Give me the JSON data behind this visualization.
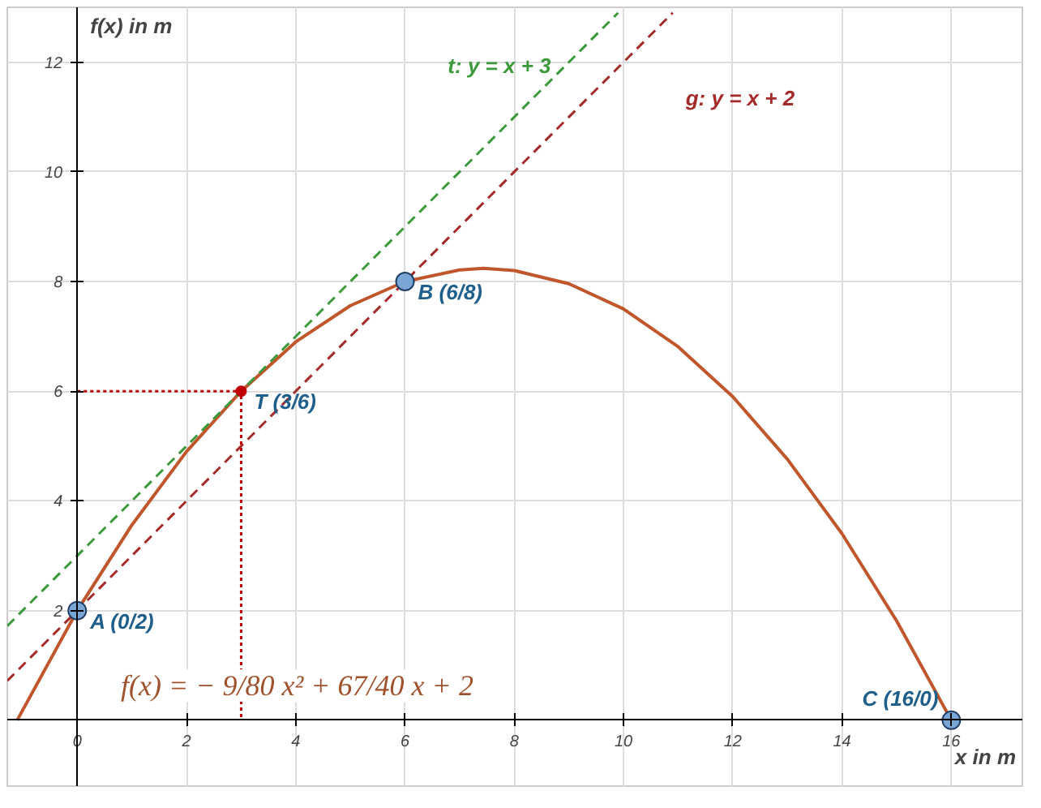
{
  "chart_data": {
    "type": "line",
    "xlabel": "x in m",
    "ylabel": "f(x) in m",
    "xlim": [
      -1.28,
      17.3
    ],
    "ylim": [
      -1.2,
      13.0
    ],
    "xticks": [
      0,
      2,
      4,
      6,
      8,
      10,
      12,
      14,
      16
    ],
    "yticks": [
      2,
      4,
      6,
      8,
      10,
      12
    ],
    "grid": true,
    "series": [
      {
        "color": "#c0562b",
        "line_style": "solid",
        "x": [
          -1.1,
          0,
          1,
          2,
          3,
          4,
          5,
          6,
          7,
          7.44,
          8,
          9,
          10,
          11,
          12,
          13,
          14,
          15,
          16
        ],
        "values": [
          0,
          2,
          3.56,
          4.9,
          6,
          6.9,
          7.56,
          8,
          8.21,
          8.24,
          8.2,
          7.96,
          7.5,
          6.81,
          5.9,
          4.76,
          3.4,
          1.81,
          0
        ]
      },
      {
        "color": "#3c9a3c",
        "line_style": "dashed",
        "x": [
          -1.28,
          9.9
        ],
        "values": [
          1.72,
          12.9
        ]
      },
      {
        "color": "#a52a2a",
        "line_style": "dashed",
        "x": [
          -1.28,
          10.9
        ],
        "values": [
          0.72,
          12.9
        ]
      },
      {
        "color": "#c00000",
        "line_style": "dotted",
        "x": [
          0,
          3,
          3
        ],
        "values": [
          6,
          6,
          0
        ]
      },
      {
        "type": "scatter",
        "color": "#7aa6d6",
        "marker": "circle",
        "x": [
          0,
          6,
          16
        ],
        "values": [
          2,
          8,
          0
        ]
      },
      {
        "type": "scatter",
        "color": "#c00000",
        "marker": "circle",
        "x": [
          3
        ],
        "values": [
          6
        ]
      }
    ],
    "annotations": [
      {
        "text": "A (0/2)",
        "x": 0,
        "y": 2
      },
      {
        "text": "B (6/8)",
        "x": 6,
        "y": 8
      },
      {
        "text": "C (16/0)",
        "x": 16,
        "y": 0
      },
      {
        "text": "T (3/6)",
        "x": 3,
        "y": 6
      },
      "t: y = x + 3",
      "g: y = x + 2",
      "f(x) = − 9/80 x² + 67/40 x + 2"
    ]
  }
}
